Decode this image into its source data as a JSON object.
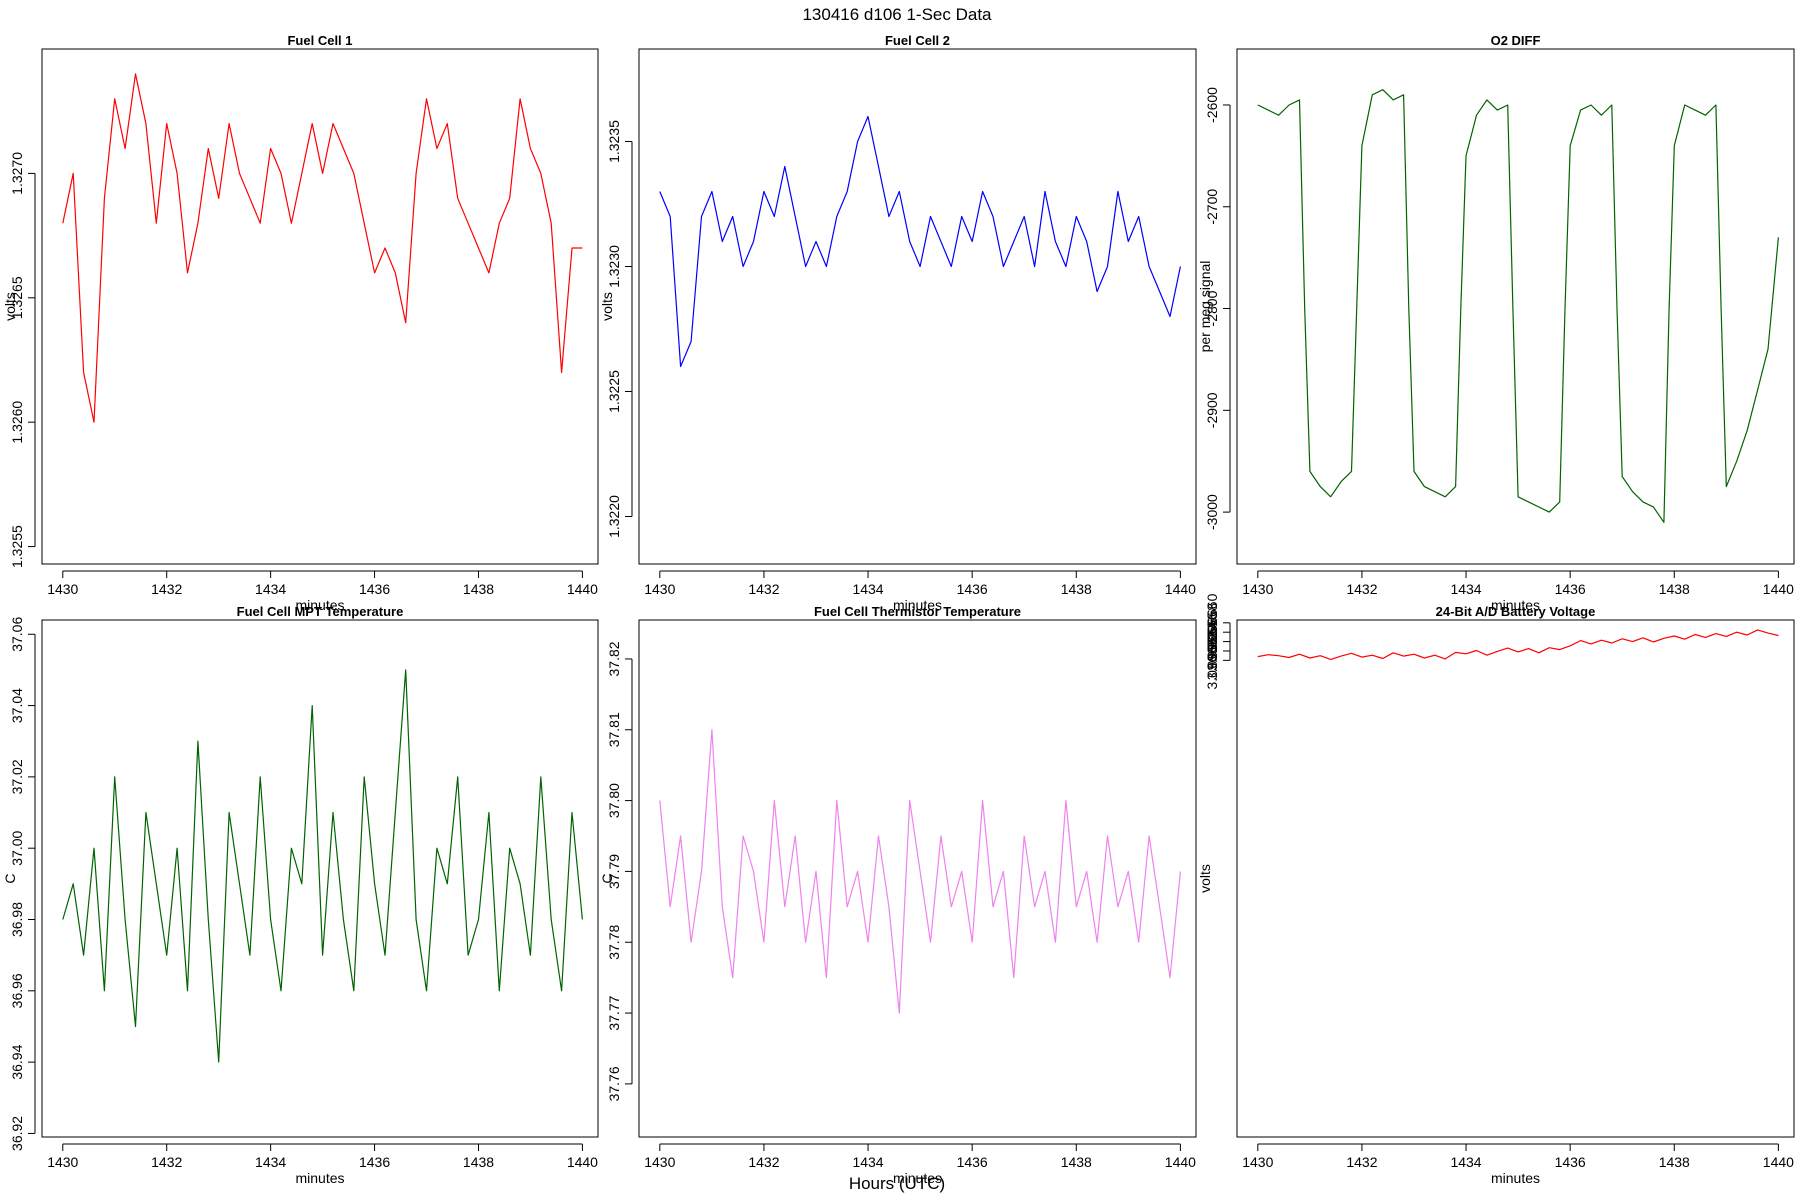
{
  "figure": {
    "title": "130416   d106   1-Sec Data",
    "bottom_label": "Hours (UTC)"
  },
  "chart_data": [
    {
      "type": "line",
      "title": "Fuel Cell 1",
      "xlabel": "minutes",
      "ylabel": "volts",
      "color": "#ff0000",
      "xlim": [
        1429.6,
        1440.3
      ],
      "ylim": [
        1.32543,
        1.3275
      ],
      "xticks": [
        1430,
        1432,
        1434,
        1436,
        1438,
        1440
      ],
      "yticks": [
        1.3255,
        1.326,
        1.3265,
        1.327
      ],
      "ytick_labels": [
        "1.3255",
        "1.3260",
        "1.3265",
        "1.3270"
      ],
      "x": [
        1430.0,
        1430.2,
        1430.4,
        1430.6,
        1430.8,
        1431.0,
        1431.2,
        1431.4,
        1431.6,
        1431.8,
        1432.0,
        1432.2,
        1432.4,
        1432.6,
        1432.8,
        1433.0,
        1433.2,
        1433.4,
        1433.6,
        1433.8,
        1434.0,
        1434.2,
        1434.4,
        1434.6,
        1434.8,
        1435.0,
        1435.2,
        1435.4,
        1435.6,
        1435.8,
        1436.0,
        1436.2,
        1436.4,
        1436.6,
        1436.8,
        1437.0,
        1437.2,
        1437.4,
        1437.6,
        1437.8,
        1438.0,
        1438.2,
        1438.4,
        1438.6,
        1438.8,
        1439.0,
        1439.2,
        1439.4,
        1439.6,
        1439.8,
        1440.0
      ],
      "values": [
        1.3268,
        1.327,
        1.3262,
        1.326,
        1.3269,
        1.3273,
        1.3271,
        1.3274,
        1.3272,
        1.3268,
        1.3272,
        1.327,
        1.3266,
        1.3268,
        1.3271,
        1.3269,
        1.3272,
        1.327,
        1.3269,
        1.3268,
        1.3271,
        1.327,
        1.3268,
        1.327,
        1.3272,
        1.327,
        1.3272,
        1.3271,
        1.327,
        1.3268,
        1.3266,
        1.3267,
        1.3266,
        1.3264,
        1.327,
        1.3273,
        1.3271,
        1.3272,
        1.3269,
        1.3268,
        1.3267,
        1.3266,
        1.3268,
        1.3269,
        1.3273,
        1.3271,
        1.327,
        1.3268,
        1.3262,
        1.3267,
        1.3267
      ]
    },
    {
      "type": "line",
      "title": "Fuel Cell 2",
      "xlabel": "minutes",
      "ylabel": "volts",
      "color": "#0000ff",
      "xlim": [
        1429.6,
        1440.3
      ],
      "ylim": [
        1.32181,
        1.32387
      ],
      "xticks": [
        1430,
        1432,
        1434,
        1436,
        1438,
        1440
      ],
      "yticks": [
        1.322,
        1.3225,
        1.323,
        1.3235
      ],
      "ytick_labels": [
        "1.3220",
        "1.3225",
        "1.3230",
        "1.3235"
      ],
      "x": [
        1430.0,
        1430.2,
        1430.4,
        1430.6,
        1430.8,
        1431.0,
        1431.2,
        1431.4,
        1431.6,
        1431.8,
        1432.0,
        1432.2,
        1432.4,
        1432.6,
        1432.8,
        1433.0,
        1433.2,
        1433.4,
        1433.6,
        1433.8,
        1434.0,
        1434.2,
        1434.4,
        1434.6,
        1434.8,
        1435.0,
        1435.2,
        1435.4,
        1435.6,
        1435.8,
        1436.0,
        1436.2,
        1436.4,
        1436.6,
        1436.8,
        1437.0,
        1437.2,
        1437.4,
        1437.6,
        1437.8,
        1438.0,
        1438.2,
        1438.4,
        1438.6,
        1438.8,
        1439.0,
        1439.2,
        1439.4,
        1439.6,
        1439.8,
        1440.0
      ],
      "values": [
        1.3233,
        1.3232,
        1.3226,
        1.3227,
        1.3232,
        1.3233,
        1.3231,
        1.3232,
        1.323,
        1.3231,
        1.3233,
        1.3232,
        1.3234,
        1.3232,
        1.323,
        1.3231,
        1.323,
        1.3232,
        1.3233,
        1.3235,
        1.3236,
        1.3234,
        1.3232,
        1.3233,
        1.3231,
        1.323,
        1.3232,
        1.3231,
        1.323,
        1.3232,
        1.3231,
        1.3233,
        1.3232,
        1.323,
        1.3231,
        1.3232,
        1.323,
        1.3233,
        1.3231,
        1.323,
        1.3232,
        1.3231,
        1.3229,
        1.323,
        1.3233,
        1.3231,
        1.3232,
        1.323,
        1.3229,
        1.3228,
        1.323
      ]
    },
    {
      "type": "line",
      "title": "O2 DIFF",
      "xlabel": "minutes",
      "ylabel": "per meg signal",
      "color": "#006400",
      "xlim": [
        1429.6,
        1440.3
      ],
      "ylim": [
        -3051,
        -2545
      ],
      "xticks": [
        1430,
        1432,
        1434,
        1436,
        1438,
        1440
      ],
      "yticks": [
        -3000,
        -2900,
        -2800,
        -2700,
        -2600
      ],
      "ytick_labels": [
        "-3000",
        "-2900",
        "-2800",
        "-2700",
        "-2600"
      ],
      "x": [
        1430.0,
        1430.2,
        1430.4,
        1430.6,
        1430.8,
        1430.9,
        1431.0,
        1431.2,
        1431.4,
        1431.6,
        1431.8,
        1431.9,
        1432.0,
        1432.2,
        1432.4,
        1432.6,
        1432.8,
        1432.9,
        1433.0,
        1433.2,
        1433.4,
        1433.6,
        1433.8,
        1433.9,
        1434.0,
        1434.2,
        1434.4,
        1434.6,
        1434.8,
        1434.9,
        1435.0,
        1435.2,
        1435.4,
        1435.6,
        1435.8,
        1435.9,
        1436.0,
        1436.2,
        1436.4,
        1436.6,
        1436.8,
        1436.9,
        1437.0,
        1437.2,
        1437.4,
        1437.6,
        1437.8,
        1437.9,
        1438.0,
        1438.2,
        1438.4,
        1438.6,
        1438.8,
        1438.9,
        1439.0,
        1439.2,
        1439.4,
        1439.6,
        1439.8,
        1440.0
      ],
      "values": [
        -2600,
        -2605,
        -2610,
        -2600,
        -2595,
        -2800,
        -2960,
        -2975,
        -2985,
        -2970,
        -2960,
        -2800,
        -2640,
        -2590,
        -2585,
        -2595,
        -2590,
        -2800,
        -2960,
        -2975,
        -2980,
        -2985,
        -2975,
        -2800,
        -2650,
        -2610,
        -2595,
        -2605,
        -2600,
        -2800,
        -2985,
        -2990,
        -2995,
        -3000,
        -2990,
        -2800,
        -2640,
        -2605,
        -2600,
        -2610,
        -2600,
        -2800,
        -2965,
        -2980,
        -2990,
        -2995,
        -3010,
        -2800,
        -2640,
        -2600,
        -2605,
        -2610,
        -2600,
        -2800,
        -2975,
        -2950,
        -2920,
        -2880,
        -2840,
        -2730
      ]
    },
    {
      "type": "line",
      "title": "Fuel Cell MPT Temperature",
      "xlabel": "minutes",
      "ylabel": "C",
      "color": "#006400",
      "xlim": [
        1429.6,
        1440.3
      ],
      "ylim": [
        36.919,
        37.064
      ],
      "xticks": [
        1430,
        1432,
        1434,
        1436,
        1438,
        1440
      ],
      "yticks": [
        36.92,
        36.94,
        36.96,
        36.98,
        37.0,
        37.02,
        37.04,
        37.06
      ],
      "ytick_labels": [
        "36.92",
        "36.94",
        "36.96",
        "36.98",
        "37.00",
        "37.02",
        "37.04",
        "37.06"
      ],
      "x": [
        1430.0,
        1430.2,
        1430.4,
        1430.6,
        1430.8,
        1431.0,
        1431.2,
        1431.4,
        1431.6,
        1431.8,
        1432.0,
        1432.2,
        1432.4,
        1432.6,
        1432.8,
        1433.0,
        1433.2,
        1433.4,
        1433.6,
        1433.8,
        1434.0,
        1434.2,
        1434.4,
        1434.6,
        1434.8,
        1435.0,
        1435.2,
        1435.4,
        1435.6,
        1435.8,
        1436.0,
        1436.2,
        1436.4,
        1436.6,
        1436.8,
        1437.0,
        1437.2,
        1437.4,
        1437.6,
        1437.8,
        1438.0,
        1438.2,
        1438.4,
        1438.6,
        1438.8,
        1439.0,
        1439.2,
        1439.4,
        1439.6,
        1439.8,
        1440.0
      ],
      "values": [
        36.98,
        36.99,
        36.97,
        37.0,
        36.96,
        37.02,
        36.98,
        36.95,
        37.01,
        36.99,
        36.97,
        37.0,
        36.96,
        37.03,
        36.98,
        36.94,
        37.01,
        36.99,
        36.97,
        37.02,
        36.98,
        36.96,
        37.0,
        36.99,
        37.04,
        36.97,
        37.01,
        36.98,
        36.96,
        37.02,
        36.99,
        36.97,
        37.01,
        37.05,
        36.98,
        36.96,
        37.0,
        36.99,
        37.02,
        36.97,
        36.98,
        37.01,
        36.96,
        37.0,
        36.99,
        36.97,
        37.02,
        36.98,
        36.96,
        37.01,
        36.98
      ]
    },
    {
      "type": "line",
      "title": "Fuel Cell Thermistor Temperature",
      "xlabel": "minutes",
      "ylabel": "C",
      "color": "#ee82ee",
      "xlim": [
        1429.6,
        1440.3
      ],
      "ylim": [
        37.7525,
        37.8255
      ],
      "xticks": [
        1430,
        1432,
        1434,
        1436,
        1438,
        1440
      ],
      "yticks": [
        37.76,
        37.77,
        37.78,
        37.79,
        37.8,
        37.81,
        37.82
      ],
      "ytick_labels": [
        "37.76",
        "37.77",
        "37.78",
        "37.79",
        "37.80",
        "37.81",
        "37.82"
      ],
      "x": [
        1430.0,
        1430.2,
        1430.4,
        1430.6,
        1430.8,
        1431.0,
        1431.2,
        1431.4,
        1431.6,
        1431.8,
        1432.0,
        1432.2,
        1432.4,
        1432.6,
        1432.8,
        1433.0,
        1433.2,
        1433.4,
        1433.6,
        1433.8,
        1434.0,
        1434.2,
        1434.4,
        1434.6,
        1434.8,
        1435.0,
        1435.2,
        1435.4,
        1435.6,
        1435.8,
        1436.0,
        1436.2,
        1436.4,
        1436.6,
        1436.8,
        1437.0,
        1437.2,
        1437.4,
        1437.6,
        1437.8,
        1438.0,
        1438.2,
        1438.4,
        1438.6,
        1438.8,
        1439.0,
        1439.2,
        1439.4,
        1439.6,
        1439.8,
        1440.0
      ],
      "values": [
        37.8,
        37.785,
        37.795,
        37.78,
        37.79,
        37.81,
        37.785,
        37.775,
        37.795,
        37.79,
        37.78,
        37.8,
        37.785,
        37.795,
        37.78,
        37.79,
        37.775,
        37.8,
        37.785,
        37.79,
        37.78,
        37.795,
        37.785,
        37.77,
        37.8,
        37.79,
        37.78,
        37.795,
        37.785,
        37.79,
        37.78,
        37.8,
        37.785,
        37.79,
        37.775,
        37.795,
        37.785,
        37.79,
        37.78,
        37.8,
        37.785,
        37.79,
        37.78,
        37.795,
        37.785,
        37.79,
        37.78,
        37.795,
        37.785,
        37.775,
        37.79
      ]
    },
    {
      "type": "line",
      "title": "24-Bit A/D Battery Voltage",
      "xlabel": "minutes",
      "ylabel": "volts",
      "color": "#ff0000",
      "xlim": [
        1429.6,
        1440.3
      ],
      "ylim": [
        3.0965504,
        3.0966606
      ],
      "xticks": [
        1430,
        1432,
        1434,
        1436,
        1438,
        1440
      ],
      "yticks": [
        3.096652,
        3.096654,
        3.096656,
        3.096658,
        3.09666
      ],
      "ytick_labels": [
        "3.096652",
        "3.096654",
        "3.096656",
        "3.096658",
        "3.096660"
      ],
      "x": [
        1430.0,
        1430.2,
        1430.4,
        1430.6,
        1430.8,
        1431.0,
        1431.2,
        1431.4,
        1431.6,
        1431.8,
        1432.0,
        1432.2,
        1432.4,
        1432.6,
        1432.8,
        1433.0,
        1433.2,
        1433.4,
        1433.6,
        1433.8,
        1434.0,
        1434.2,
        1434.4,
        1434.6,
        1434.8,
        1435.0,
        1435.2,
        1435.4,
        1435.6,
        1435.8,
        1436.0,
        1436.2,
        1436.4,
        1436.6,
        1436.8,
        1437.0,
        1437.2,
        1437.4,
        1437.6,
        1437.8,
        1438.0,
        1438.2,
        1438.4,
        1438.6,
        1438.8,
        1439.0,
        1439.2,
        1439.4,
        1439.6,
        1439.8,
        1440.0
      ],
      "values": [
        3.0966528,
        3.0966532,
        3.096653,
        3.0966526,
        3.0966533,
        3.0966525,
        3.096653,
        3.0966522,
        3.0966529,
        3.0966535,
        3.0966527,
        3.0966531,
        3.0966524,
        3.0966536,
        3.0966529,
        3.0966533,
        3.0966525,
        3.0966531,
        3.0966523,
        3.0966537,
        3.0966534,
        3.0966541,
        3.0966531,
        3.0966539,
        3.0966546,
        3.0966538,
        3.0966545,
        3.0966536,
        3.0966547,
        3.0966543,
        3.0966551,
        3.0966562,
        3.0966555,
        3.0966563,
        3.0966557,
        3.0966566,
        3.096656,
        3.0966568,
        3.0966559,
        3.0966567,
        3.0966572,
        3.0966565,
        3.0966575,
        3.0966569,
        3.0966577,
        3.0966571,
        3.096658,
        3.0966574,
        3.0966585,
        3.0966578,
        3.0966573
      ]
    }
  ]
}
